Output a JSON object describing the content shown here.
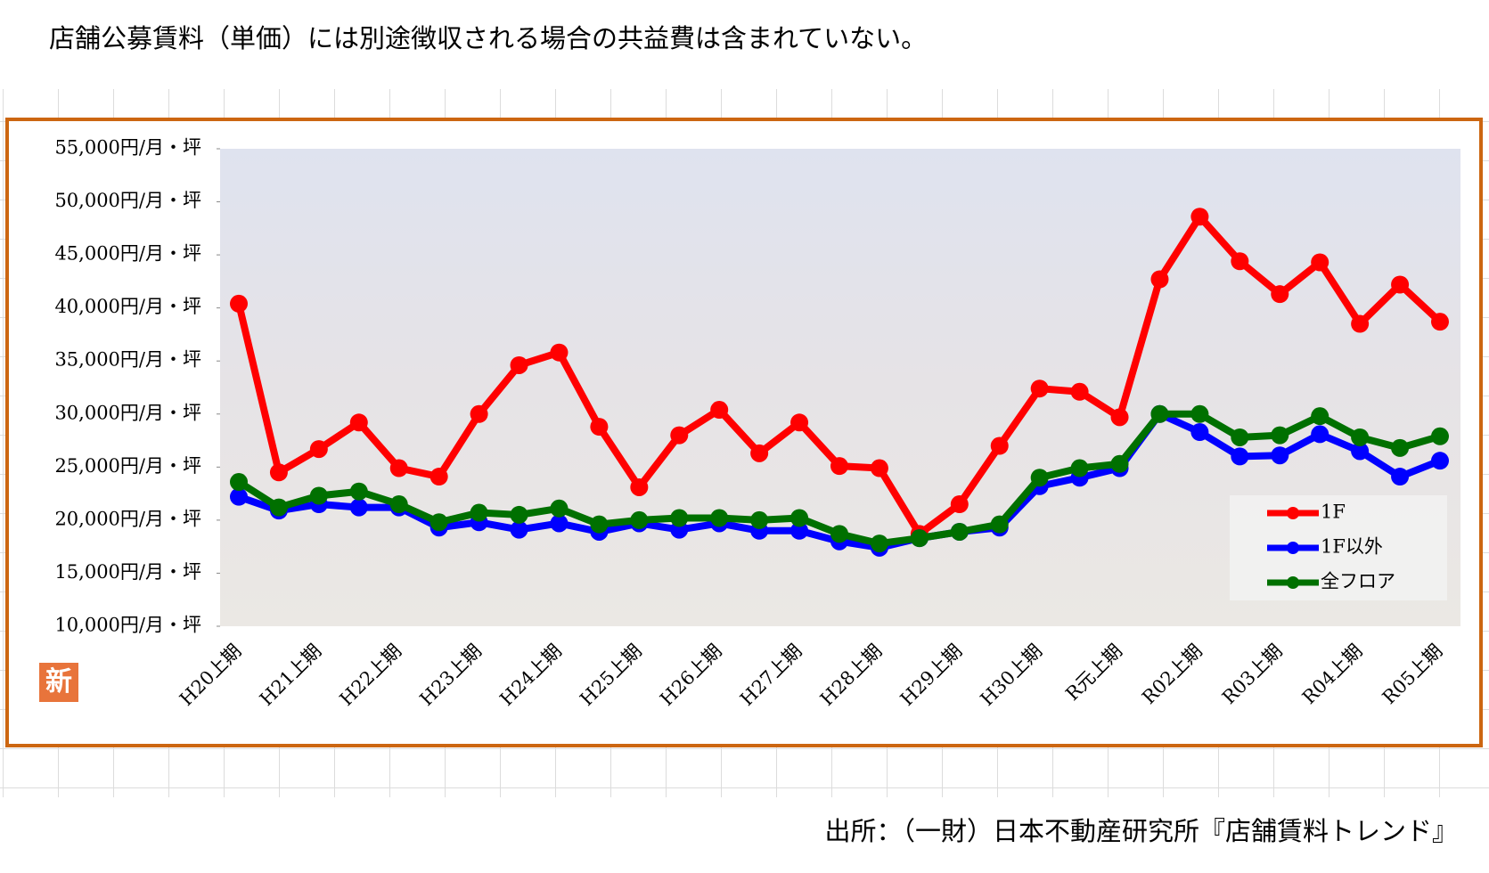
{
  "header": {
    "title": "店舗公募賃料（単価）には別途徴収される場合の共益費は含まれていない。"
  },
  "footer": {
    "source": "出所：（一財）日本不動産研究所『店舗賃料トレンド』"
  },
  "badge": "新",
  "chart_data": {
    "type": "line",
    "categories": [
      "H20上期",
      null,
      "H21上期",
      null,
      "H22上期",
      null,
      "H23上期",
      null,
      "H24上期",
      null,
      "H25上期",
      null,
      "H26上期",
      null,
      "H27上期",
      null,
      "H28上期",
      null,
      "H29上期",
      null,
      "H30上期",
      null,
      "R元上期",
      null,
      "R02上期",
      null,
      "R03上期",
      null,
      "R04上期",
      null,
      "R05上期"
    ],
    "series": [
      {
        "name": "1F",
        "color": "#ff0000",
        "values": [
          40400,
          24500,
          26700,
          29200,
          24900,
          24100,
          30000,
          34600,
          35800,
          28800,
          23100,
          28000,
          30400,
          26300,
          29200,
          25100,
          24900,
          18700,
          21500,
          27000,
          32400,
          32100,
          29700,
          42700,
          48600,
          44400,
          41300,
          44300,
          38500,
          42200,
          38700
        ]
      },
      {
        "name": "1F以外",
        "color": "#0000ff",
        "values": [
          22200,
          20900,
          21500,
          21200,
          21200,
          19300,
          19800,
          19100,
          19700,
          18900,
          19700,
          19100,
          19700,
          19000,
          19000,
          18000,
          17400,
          18300,
          18900,
          19300,
          23200,
          24000,
          24900,
          30000,
          28300,
          26000,
          26100,
          28100,
          26500,
          24100,
          25600
        ]
      },
      {
        "name": "全フロア",
        "color": "#007000",
        "values": [
          23600,
          21200,
          22300,
          22700,
          21500,
          19800,
          20700,
          20500,
          21100,
          19600,
          20000,
          20200,
          20200,
          20000,
          20200,
          18700,
          17800,
          18300,
          18900,
          19600,
          24000,
          24900,
          25300,
          30000,
          30000,
          27800,
          28000,
          29800,
          27800,
          26800,
          27900
        ]
      }
    ],
    "ylim": [
      10000,
      55000
    ],
    "yticks": [
      {
        "value": 10000,
        "label": "10,000円/月・坪"
      },
      {
        "value": 15000,
        "label": "15,000円/月・坪"
      },
      {
        "value": 20000,
        "label": "20,000円/月・坪"
      },
      {
        "value": 25000,
        "label": "25,000円/月・坪"
      },
      {
        "value": 30000,
        "label": "30,000円/月・坪"
      },
      {
        "value": 35000,
        "label": "35,000円/月・坪"
      },
      {
        "value": 40000,
        "label": "40,000円/月・坪"
      },
      {
        "value": 45000,
        "label": "45,000円/月・坪"
      },
      {
        "value": 50000,
        "label": "50,000円/月・坪"
      },
      {
        "value": 55000,
        "label": "55,000円/月・坪"
      }
    ],
    "legend": "lower right"
  }
}
